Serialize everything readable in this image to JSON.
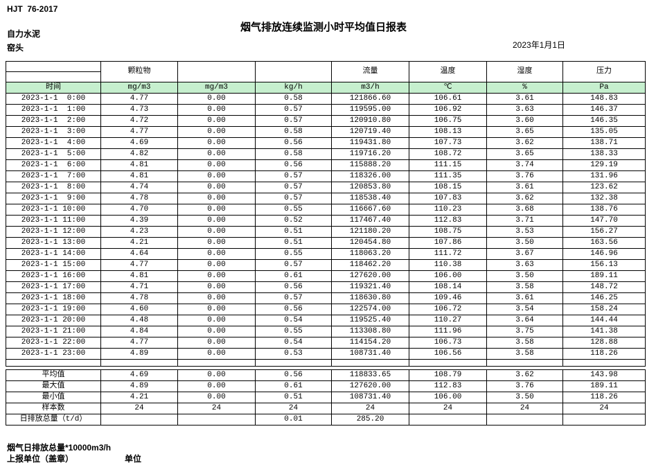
{
  "header": {
    "standard": "HJT  76-2017",
    "company": "自力水泥",
    "station": "窑头",
    "title": "烟气排放连续监测小时平均值日报表",
    "date": "2023年1月1日"
  },
  "table": {
    "group_headers": [
      "",
      "颗粒物",
      "",
      "",
      "流量",
      "温度",
      "湿度",
      "压力"
    ],
    "unit_row": [
      "时间",
      "mg/m3",
      "mg/m3",
      "kg/h",
      "m3/h",
      "℃",
      "%",
      "Pa"
    ],
    "rows": [
      [
        "2023-1-1  0:00",
        "4.77",
        "0.00",
        "0.58",
        "121866.60",
        "106.61",
        "3.61",
        "148.83"
      ],
      [
        "2023-1-1  1:00",
        "4.73",
        "0.00",
        "0.57",
        "119595.00",
        "106.92",
        "3.63",
        "146.37"
      ],
      [
        "2023-1-1  2:00",
        "4.72",
        "0.00",
        "0.57",
        "120910.80",
        "106.75",
        "3.60",
        "146.35"
      ],
      [
        "2023-1-1  3:00",
        "4.77",
        "0.00",
        "0.58",
        "120719.40",
        "108.13",
        "3.65",
        "135.05"
      ],
      [
        "2023-1-1  4:00",
        "4.69",
        "0.00",
        "0.56",
        "119431.80",
        "107.73",
        "3.62",
        "138.71"
      ],
      [
        "2023-1-1  5:00",
        "4.82",
        "0.00",
        "0.58",
        "119716.20",
        "108.72",
        "3.65",
        "138.33"
      ],
      [
        "2023-1-1  6:00",
        "4.81",
        "0.00",
        "0.56",
        "115888.20",
        "111.15",
        "3.74",
        "129.19"
      ],
      [
        "2023-1-1  7:00",
        "4.81",
        "0.00",
        "0.57",
        "118326.00",
        "111.35",
        "3.76",
        "131.96"
      ],
      [
        "2023-1-1  8:00",
        "4.74",
        "0.00",
        "0.57",
        "120853.80",
        "108.15",
        "3.61",
        "123.62"
      ],
      [
        "2023-1-1  9:00",
        "4.78",
        "0.00",
        "0.57",
        "118538.40",
        "107.83",
        "3.62",
        "132.38"
      ],
      [
        "2023-1-1 10:00",
        "4.70",
        "0.00",
        "0.55",
        "116667.60",
        "110.23",
        "3.68",
        "138.76"
      ],
      [
        "2023-1-1 11:00",
        "4.39",
        "0.00",
        "0.52",
        "117467.40",
        "112.83",
        "3.71",
        "147.70"
      ],
      [
        "2023-1-1 12:00",
        "4.23",
        "0.00",
        "0.51",
        "121180.20",
        "108.75",
        "3.53",
        "156.27"
      ],
      [
        "2023-1-1 13:00",
        "4.21",
        "0.00",
        "0.51",
        "120454.80",
        "107.86",
        "3.50",
        "163.56"
      ],
      [
        "2023-1-1 14:00",
        "4.64",
        "0.00",
        "0.55",
        "118063.20",
        "111.72",
        "3.67",
        "146.96"
      ],
      [
        "2023-1-1 15:00",
        "4.77",
        "0.00",
        "0.57",
        "118462.20",
        "110.38",
        "3.63",
        "156.13"
      ],
      [
        "2023-1-1 16:00",
        "4.81",
        "0.00",
        "0.61",
        "127620.00",
        "106.00",
        "3.50",
        "189.11"
      ],
      [
        "2023-1-1 17:00",
        "4.71",
        "0.00",
        "0.56",
        "119321.40",
        "108.14",
        "3.58",
        "148.72"
      ],
      [
        "2023-1-1 18:00",
        "4.78",
        "0.00",
        "0.57",
        "118630.80",
        "109.46",
        "3.61",
        "146.25"
      ],
      [
        "2023-1-1 19:00",
        "4.60",
        "0.00",
        "0.56",
        "122574.00",
        "106.72",
        "3.54",
        "158.24"
      ],
      [
        "2023-1-1 20:00",
        "4.48",
        "0.00",
        "0.54",
        "119525.40",
        "110.27",
        "3.64",
        "144.44"
      ],
      [
        "2023-1-1 21:00",
        "4.84",
        "0.00",
        "0.55",
        "113308.80",
        "111.96",
        "3.75",
        "141.38"
      ],
      [
        "2023-1-1 22:00",
        "4.77",
        "0.00",
        "0.54",
        "114154.20",
        "106.73",
        "3.58",
        "128.88"
      ],
      [
        "2023-1-1 23:00",
        "4.89",
        "0.00",
        "0.53",
        "108731.40",
        "106.56",
        "3.58",
        "118.26"
      ]
    ],
    "summary_rows": [
      [
        "平均值",
        "4.69",
        "0.00",
        "0.56",
        "118833.65",
        "108.79",
        "3.62",
        "143.98"
      ],
      [
        "最大值",
        "4.89",
        "0.00",
        "0.61",
        "127620.00",
        "112.83",
        "3.76",
        "189.11"
      ],
      [
        "最小值",
        "4.21",
        "0.00",
        "0.51",
        "108731.40",
        "106.00",
        "3.50",
        "118.26"
      ],
      [
        "样本数",
        "24",
        "24",
        "24",
        "24",
        "24",
        "24",
        "24"
      ],
      [
        "日排放总量（t/d）",
        "",
        "",
        "0.01",
        "285.20",
        "",
        "",
        ""
      ]
    ]
  },
  "footer": {
    "note": "烟气日排放总量*10000m3/h",
    "report_org_label": "上报单位（盖章）",
    "unit_label": "单位"
  },
  "colors": {
    "header_row_green": "#c6efce",
    "border": "#000000"
  }
}
